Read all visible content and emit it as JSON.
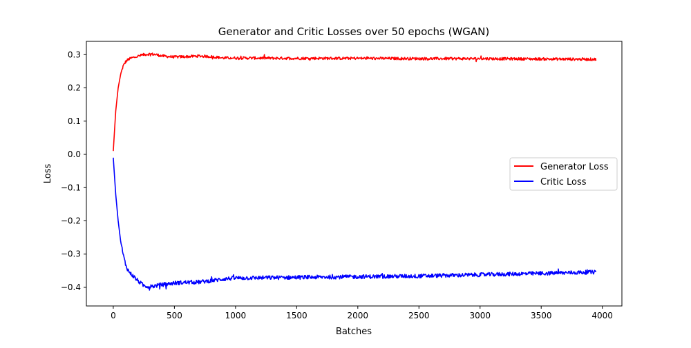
{
  "chart_data": {
    "type": "line",
    "title": "Generator and Critic Losses over 50 epochs (WGAN)",
    "xlabel": "Batches",
    "ylabel": "Loss",
    "xlim": [
      -220,
      4160
    ],
    "ylim": [
      -0.456,
      0.34
    ],
    "xticks": [
      {
        "value": 0,
        "label": "0"
      },
      {
        "value": 500,
        "label": "500"
      },
      {
        "value": 1000,
        "label": "1000"
      },
      {
        "value": 1500,
        "label": "1500"
      },
      {
        "value": 2000,
        "label": "2000"
      },
      {
        "value": 2500,
        "label": "2500"
      },
      {
        "value": 3000,
        "label": "3000"
      },
      {
        "value": 3500,
        "label": "3500"
      },
      {
        "value": 4000,
        "label": "4000"
      }
    ],
    "yticks": [
      {
        "value": 0.3,
        "label": "0.3"
      },
      {
        "value": 0.2,
        "label": "0.2"
      },
      {
        "value": 0.1,
        "label": "0.1"
      },
      {
        "value": 0.0,
        "label": "0.0"
      },
      {
        "value": -0.1,
        "label": "−0.1"
      },
      {
        "value": -0.2,
        "label": "−0.2"
      },
      {
        "value": -0.3,
        "label": "−0.3"
      },
      {
        "value": -0.4,
        "label": "−0.4"
      }
    ],
    "grid": false,
    "legend": "center-right",
    "series": [
      {
        "name": "Generator Loss",
        "color": "#ff0000",
        "noise": 0.004,
        "x": [
          0,
          20,
          40,
          60,
          80,
          100,
          120,
          150,
          200,
          250,
          300,
          350,
          400,
          500,
          600,
          700,
          800,
          900,
          1000,
          1500,
          2000,
          2500,
          3000,
          3500,
          3950
        ],
        "y": [
          0.01,
          0.13,
          0.2,
          0.24,
          0.265,
          0.278,
          0.285,
          0.29,
          0.295,
          0.3,
          0.302,
          0.3,
          0.296,
          0.293,
          0.294,
          0.296,
          0.294,
          0.29,
          0.29,
          0.289,
          0.289,
          0.288,
          0.288,
          0.287,
          0.286
        ]
      },
      {
        "name": "Critic Loss",
        "color": "#0000ff",
        "noise": 0.006,
        "x": [
          0,
          20,
          40,
          60,
          80,
          100,
          120,
          140,
          160,
          200,
          250,
          300,
          400,
          500,
          600,
          700,
          800,
          900,
          1000,
          1500,
          2000,
          2500,
          3000,
          3500,
          3950
        ],
        "y": [
          -0.01,
          -0.12,
          -0.2,
          -0.26,
          -0.3,
          -0.33,
          -0.348,
          -0.358,
          -0.365,
          -0.38,
          -0.395,
          -0.398,
          -0.392,
          -0.387,
          -0.385,
          -0.384,
          -0.38,
          -0.375,
          -0.372,
          -0.37,
          -0.368,
          -0.366,
          -0.362,
          -0.358,
          -0.354
        ]
      }
    ]
  }
}
